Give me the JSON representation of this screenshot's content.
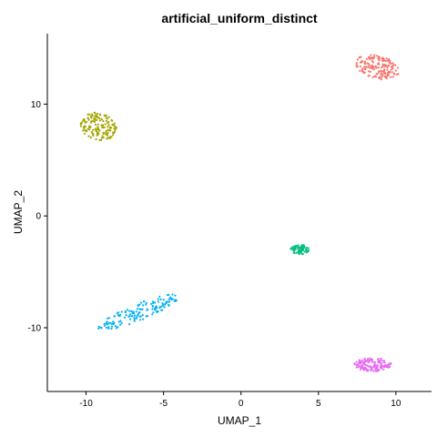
{
  "chart_data": {
    "type": "scatter",
    "title": "artificial_uniform_distinct",
    "xlabel": "UMAP_1",
    "ylabel": "UMAP_2",
    "xlim": [
      -12.5,
      12.3
    ],
    "ylim": [
      -15.7,
      16.3
    ],
    "x_ticks": [
      -10,
      -5,
      0,
      5,
      10
    ],
    "y_ticks": [
      -10,
      0,
      10
    ],
    "x_tick_labels": [
      "-10",
      "-5",
      "0",
      "5",
      "10"
    ],
    "y_tick_labels": [
      "-10",
      "0",
      "10"
    ],
    "grid": false,
    "legend": "none",
    "series": [
      {
        "color": "#F8766D",
        "n": 170,
        "center": [
          8.8,
          13.3
        ],
        "spread": [
          1.5,
          1.0
        ],
        "angle": -24
      },
      {
        "color": "#A3A500",
        "n": 150,
        "center": [
          -9.2,
          8.0
        ],
        "spread": [
          1.1,
          1.3
        ],
        "angle": 32
      },
      {
        "color": "#00BF7D",
        "n": 75,
        "center": [
          3.8,
          -3.0
        ],
        "spread": [
          0.6,
          0.45
        ],
        "angle": 0
      },
      {
        "color": "#00B0F6",
        "n": 150,
        "center": [
          -6.6,
          -8.6
        ],
        "spread": [
          3.0,
          0.7
        ],
        "angle": 30
      },
      {
        "color": "#E76BF3",
        "n": 150,
        "center": [
          8.5,
          -13.3
        ],
        "spread": [
          1.2,
          0.6
        ],
        "angle": 0
      }
    ]
  }
}
